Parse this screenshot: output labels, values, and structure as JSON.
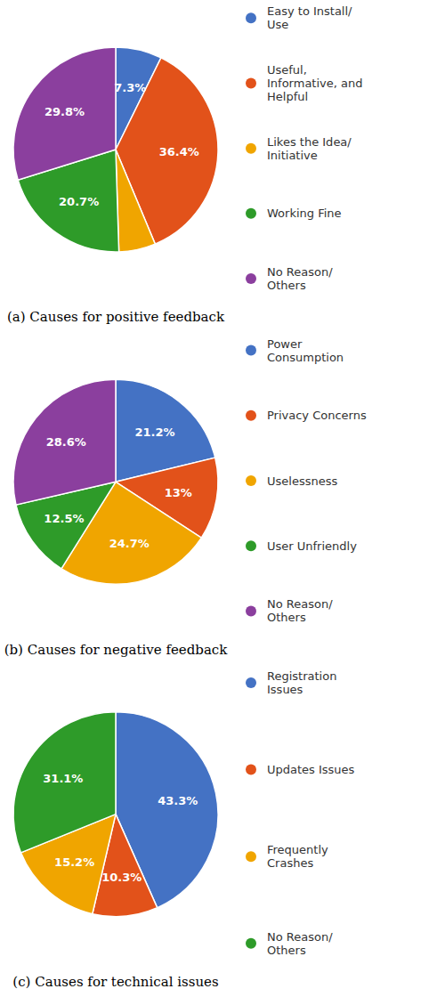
{
  "chart_data": [
    {
      "type": "pie",
      "title": "(a) Causes for positive feedback",
      "categories": [
        "Easy to Install/\nUse",
        "Useful,\nInformative, and\nHelpful",
        "Likes the Idea/\nInitiative",
        "Working Fine",
        "No Reason/\nOthers"
      ],
      "values": [
        7.3,
        36.4,
        5.8,
        20.7,
        29.8
      ],
      "value_labels": [
        "7.3%",
        "36.4%",
        null,
        "20.7%",
        "29.8%"
      ],
      "colors": [
        "#4472C4",
        "#E2521A",
        "#F0A500",
        "#2E9B29",
        "#8B3F9E"
      ],
      "data_labels": true,
      "legend": "right"
    },
    {
      "type": "pie",
      "title": "(b) Causes for negative feedback",
      "categories": [
        "Power\nConsumption",
        "Privacy Concerns",
        "Uselessness",
        "User Unfriendly",
        "No Reason/\nOthers"
      ],
      "values": [
        21.2,
        13.0,
        24.7,
        12.5,
        28.6
      ],
      "value_labels": [
        "21.2%",
        "13%",
        "24.7%",
        "12.5%",
        "28.6%"
      ],
      "colors": [
        "#4472C4",
        "#E2521A",
        "#F0A500",
        "#2E9B29",
        "#8B3F9E"
      ],
      "data_labels": true,
      "legend": "right"
    },
    {
      "type": "pie",
      "title": "(c) Causes for technical issues",
      "categories": [
        "Registration\nIssues",
        "Updates Issues",
        "Frequently\nCrashes",
        "No Reason/\nOthers"
      ],
      "values": [
        43.3,
        10.3,
        15.2,
        31.1
      ],
      "value_labels": [
        "43.3%",
        "10.3%",
        "15.2%",
        "31.1%"
      ],
      "colors": [
        "#4472C4",
        "#E2521A",
        "#F0A500",
        "#2E9B29"
      ],
      "data_labels": true,
      "legend": "right"
    }
  ]
}
